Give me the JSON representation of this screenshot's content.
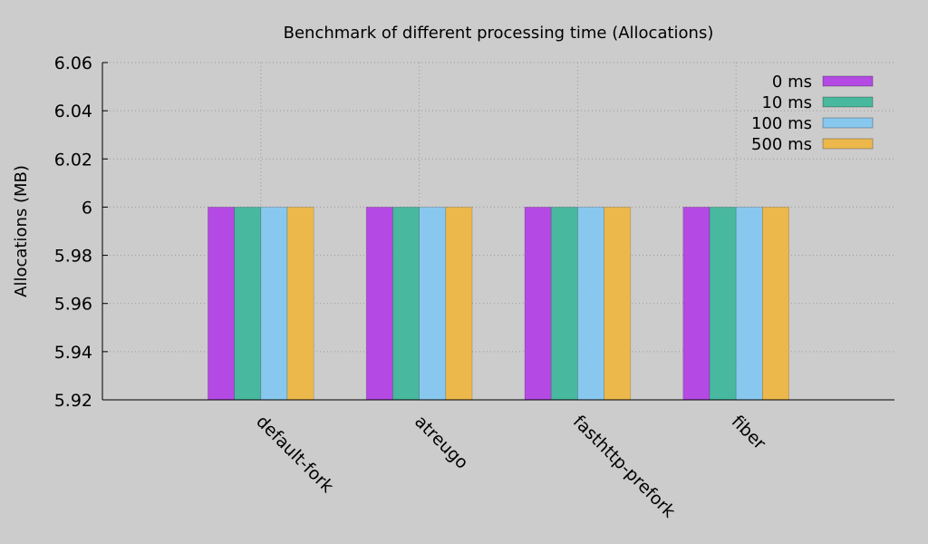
{
  "chart_data": {
    "type": "bar",
    "title": "Benchmark of different processing time (Allocations)",
    "xlabel": "",
    "ylabel": "Allocations (MB)",
    "ylim": [
      5.92,
      6.06
    ],
    "yticks": [
      "5.92",
      "5.94",
      "5.96",
      "5.98",
      "6",
      "6.02",
      "6.04",
      "6.06"
    ],
    "categories": [
      "default-fork",
      "atreugo",
      "fasthttp-prefork",
      "fiber"
    ],
    "series": [
      {
        "name": "0 ms",
        "values": [
          6,
          6,
          6,
          6
        ],
        "color": "#b44ae3"
      },
      {
        "name": "10 ms",
        "values": [
          6,
          6,
          6,
          6
        ],
        "color": "#48b89f"
      },
      {
        "name": "100 ms",
        "values": [
          6,
          6,
          6,
          6
        ],
        "color": "#88c8ee"
      },
      {
        "name": "500 ms",
        "values": [
          6,
          6,
          6,
          6
        ],
        "color": "#ecb84c"
      }
    ],
    "grid": true,
    "legend_position": "top-right"
  }
}
